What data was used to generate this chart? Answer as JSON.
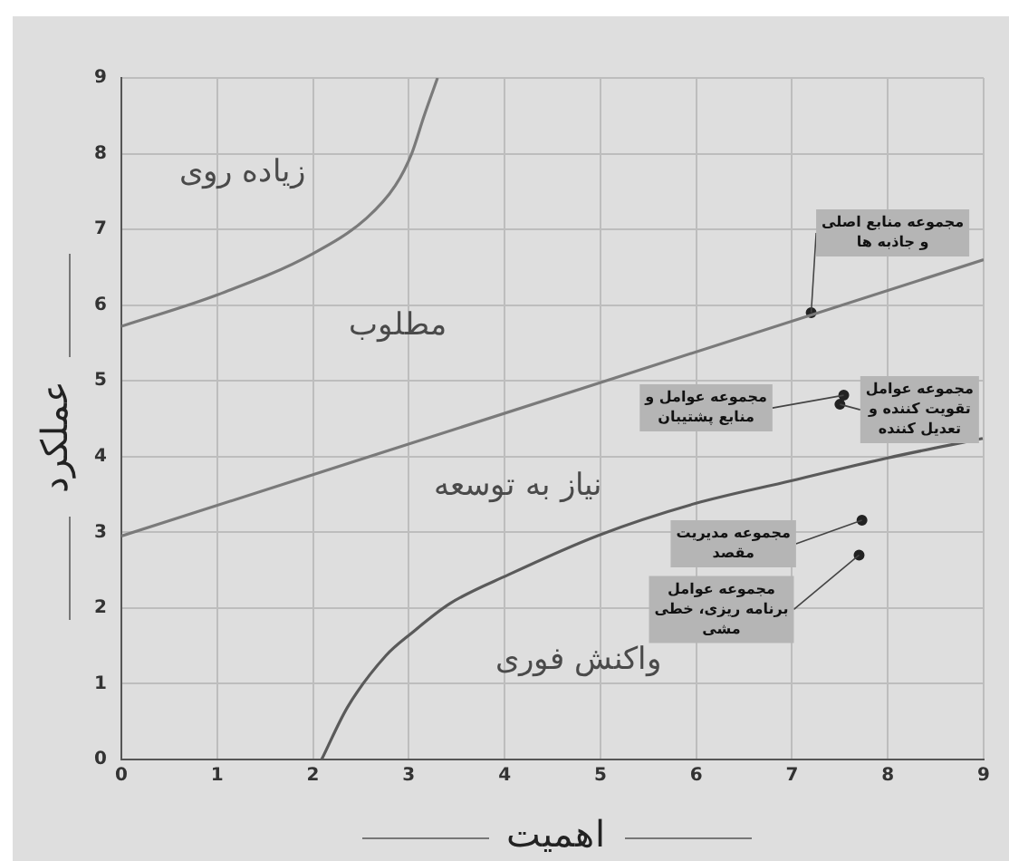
{
  "chart_data": {
    "type": "line",
    "xlabel": "اهمیت",
    "ylabel": "عملکرد",
    "xlim": [
      0,
      9
    ],
    "ylim": [
      0,
      9
    ],
    "xticks": [
      0,
      1,
      2,
      3,
      4,
      5,
      6,
      7,
      8,
      9
    ],
    "yticks": [
      0,
      1,
      2,
      3,
      4,
      5,
      6,
      7,
      8,
      9
    ],
    "grid": true,
    "legend": false,
    "marker": "none",
    "series": [
      {
        "color": "#7a7a7a",
        "x": [
          0,
          1.01,
          2.0,
          2.56,
          2.86,
          3.03,
          3.16,
          3.3
        ],
        "values": [
          5.72,
          6.14,
          6.68,
          7.15,
          7.58,
          8.0,
          8.5,
          9
        ]
      },
      {
        "color": "#7a7a7a",
        "x": [
          0,
          9
        ],
        "values": [
          2.95,
          6.6
        ]
      },
      {
        "color": "#5a5a5a",
        "x": [
          2.09,
          2.36,
          2.76,
          3.03,
          3.43,
          4.04,
          4.98,
          5.99,
          6.99,
          7.99,
          8.99
        ],
        "values": [
          0,
          0.69,
          1.37,
          1.67,
          2.06,
          2.44,
          2.96,
          3.38,
          3.68,
          3.98,
          4.24
        ]
      },
      {
        "type": "scatter",
        "marker": "circle",
        "name": "مجموعه منابع اصلی و جاذبه ها",
        "color": "#222222",
        "x": [
          7.2
        ],
        "values": [
          5.9
        ]
      },
      {
        "type": "scatter",
        "marker": "circle",
        "name": "مجموعه عوامل و منابع پشتیبان",
        "color": "#222222",
        "x": [
          7.54
        ],
        "values": [
          4.81
        ]
      },
      {
        "type": "scatter",
        "marker": "circle",
        "name": "مجموعه عوامل تقویت کننده و تعدیل کننده",
        "color": "#222222",
        "x": [
          7.5
        ],
        "values": [
          4.69
        ]
      },
      {
        "type": "scatter",
        "marker": "circle",
        "name": "مجموعه مدیریت مقصد",
        "color": "#222222",
        "x": [
          7.73
        ],
        "values": [
          3.16
        ]
      },
      {
        "type": "scatter",
        "marker": "circle",
        "name": "مجموعه عوامل برنامه ریزی، خطی مشی",
        "color": "#222222",
        "x": [
          7.7
        ],
        "values": [
          2.7
        ]
      }
    ],
    "annotations": [
      "زیاده روی",
      "مطلوب",
      "نیاز به توسعه",
      "واکنش فوری"
    ]
  }
}
